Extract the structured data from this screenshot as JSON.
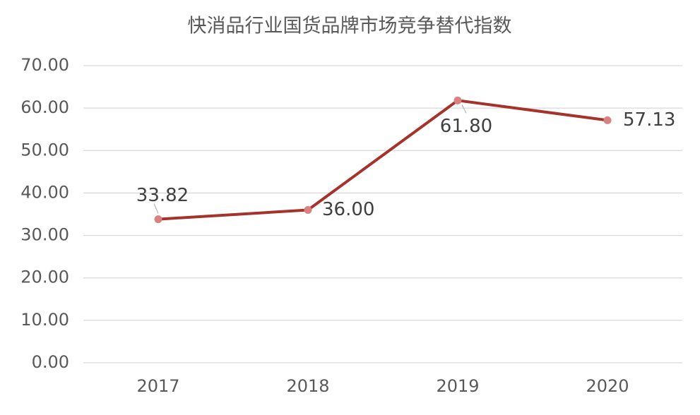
{
  "chart_data": {
    "type": "line",
    "title": "快消品行业国货品牌市场竞争替代指数",
    "categories": [
      "2017",
      "2018",
      "2019",
      "2020"
    ],
    "values": [
      33.82,
      36.0,
      61.8,
      57.13
    ],
    "value_labels": [
      "33.82",
      "36.00",
      "61.80",
      "57.13"
    ],
    "color": "#a5322b",
    "marker_color": "#d98080",
    "ylim": [
      0,
      70
    ],
    "yticks": [
      {
        "value": 0,
        "label": "0.00"
      },
      {
        "value": 10,
        "label": "10.00"
      },
      {
        "value": 20,
        "label": "20.00"
      },
      {
        "value": 30,
        "label": "30.00"
      },
      {
        "value": 40,
        "label": "40.00"
      },
      {
        "value": 50,
        "label": "50.00"
      },
      {
        "value": 60,
        "label": "60.00"
      },
      {
        "value": 70,
        "label": "70.00"
      }
    ],
    "grid": true
  }
}
